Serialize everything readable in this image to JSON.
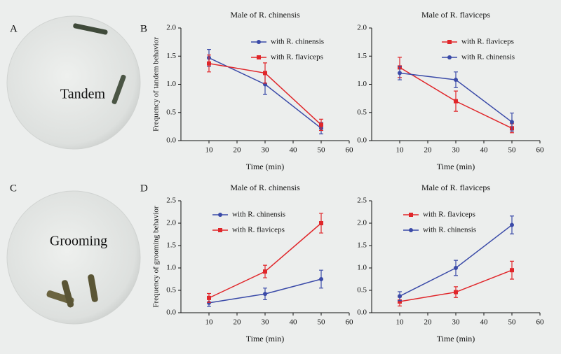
{
  "panel_labels": [
    "A",
    "B",
    "C",
    "D"
  ],
  "photos": [
    {
      "label": "Tandem"
    },
    {
      "label": "Grooming"
    }
  ],
  "chart_data": [
    {
      "type": "line",
      "title": "Male of R. chinensis",
      "ylabel": "Frequency of tandem behavior",
      "xlabel": "Time (min)",
      "x": [
        10,
        30,
        50
      ],
      "xlim": [
        0,
        60
      ],
      "xticks": [
        10,
        20,
        30,
        40,
        50,
        60
      ],
      "ylim": [
        0,
        2
      ],
      "yticks": [
        {
          "value": 0,
          "label": "0.0"
        },
        0.5,
        {
          "value": 1,
          "label": "1.0"
        },
        1.5,
        {
          "value": 2,
          "label": "2.0"
        }
      ],
      "legend": "upper right",
      "series": [
        {
          "name": "with R. chinensis",
          "color": "#3a4aa8",
          "marker": "circle",
          "values": [
            1.47,
            1.0,
            0.22
          ],
          "errors": [
            0.15,
            0.18,
            0.1
          ]
        },
        {
          "name": "with R. flaviceps",
          "color": "#e0262a",
          "marker": "square",
          "values": [
            1.37,
            1.2,
            0.28
          ],
          "errors": [
            0.15,
            0.18,
            0.1
          ]
        }
      ]
    },
    {
      "type": "line",
      "title": "Male of R. flaviceps",
      "xlabel": "Time (min)",
      "x": [
        10,
        30,
        50
      ],
      "xlim": [
        0,
        60
      ],
      "xticks": [
        10,
        20,
        30,
        40,
        50,
        60
      ],
      "ylim": [
        0,
        2
      ],
      "yticks": [
        {
          "value": 0,
          "label": "0.0"
        },
        0.5,
        {
          "value": 1,
          "label": "1.0"
        },
        1.5,
        {
          "value": 2,
          "label": "2.0"
        }
      ],
      "legend": "upper right",
      "series": [
        {
          "name": "with R. flaviceps",
          "color": "#e0262a",
          "marker": "square",
          "values": [
            1.3,
            0.7,
            0.22
          ],
          "errors": [
            0.18,
            0.18,
            0.08
          ]
        },
        {
          "name": "with R. chinensis",
          "color": "#3a4aa8",
          "marker": "circle",
          "values": [
            1.2,
            1.08,
            0.33
          ],
          "errors": [
            0.12,
            0.14,
            0.16
          ]
        }
      ]
    },
    {
      "type": "line",
      "title": "Male of R. chinensis",
      "ylabel": "Frequency of grooming behavior",
      "xlabel": "Time (min)",
      "x": [
        10,
        30,
        50
      ],
      "xlim": [
        0,
        60
      ],
      "xticks": [
        10,
        20,
        30,
        40,
        50,
        60
      ],
      "ylim": [
        0,
        2.5
      ],
      "yticks": [
        {
          "value": 0,
          "label": "0.0"
        },
        0.5,
        {
          "value": 1,
          "label": "1.0"
        },
        1.5,
        {
          "value": 2,
          "label": "2.0"
        },
        2.5
      ],
      "legend": "upper left",
      "series": [
        {
          "name": "with R. chinensis",
          "color": "#3a4aa8",
          "marker": "circle",
          "values": [
            0.22,
            0.42,
            0.75
          ],
          "errors": [
            0.08,
            0.13,
            0.2
          ]
        },
        {
          "name": "with R. flaviceps",
          "color": "#e0262a",
          "marker": "square",
          "values": [
            0.33,
            0.92,
            2.0
          ],
          "errors": [
            0.1,
            0.14,
            0.22
          ]
        }
      ]
    },
    {
      "type": "line",
      "title": "Male of R. flaviceps",
      "xlabel": "Time (min)",
      "x": [
        10,
        30,
        50
      ],
      "xlim": [
        0,
        60
      ],
      "xticks": [
        10,
        20,
        30,
        40,
        50,
        60
      ],
      "ylim": [
        0,
        2.5
      ],
      "yticks": [
        {
          "value": 0,
          "label": "0.0"
        },
        0.5,
        {
          "value": 1,
          "label": "1.0"
        },
        1.5,
        {
          "value": 2,
          "label": "2.0"
        },
        2.5
      ],
      "legend": "upper left",
      "series": [
        {
          "name": "with R. flaviceps",
          "color": "#e0262a",
          "marker": "square",
          "values": [
            0.25,
            0.46,
            0.95
          ],
          "errors": [
            0.1,
            0.12,
            0.2
          ]
        },
        {
          "name": "with R. chinensis",
          "color": "#3a4aa8",
          "marker": "circle",
          "values": [
            0.37,
            1.0,
            1.96
          ],
          "errors": [
            0.1,
            0.17,
            0.2
          ]
        }
      ]
    }
  ]
}
